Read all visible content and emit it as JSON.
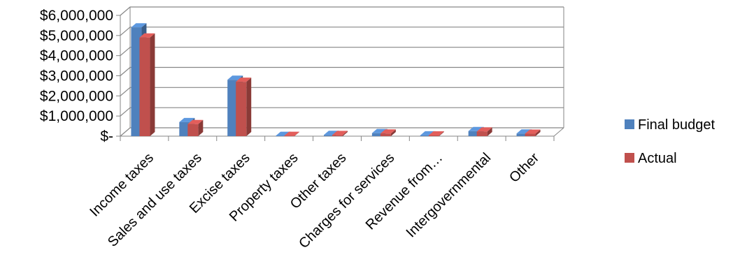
{
  "chart_data": {
    "type": "bar",
    "categories": [
      "Income taxes",
      "Sales and use taxes",
      "Excise taxes",
      "Property taxes",
      "Other taxes",
      "Charges for services",
      "Revenue from…",
      "Intergovernmental",
      "Other"
    ],
    "series": [
      {
        "name": "Final budget",
        "color": "#4F81BD",
        "values": [
          5400000,
          700000,
          2800000,
          15000,
          60000,
          150000,
          40000,
          250000,
          130000
        ]
      },
      {
        "name": "Actual",
        "color": "#C0504D",
        "values": [
          4900000,
          600000,
          2700000,
          12000,
          55000,
          130000,
          35000,
          230000,
          120000
        ]
      }
    ],
    "yticks": [
      "$-",
      "$1,000,000",
      "$2,000,000",
      "$3,000,000",
      "$4,000,000",
      "$5,000,000",
      "$6,000,000"
    ],
    "ylim": [
      0,
      6000000
    ],
    "grid": true,
    "legend_position": "right",
    "title": "",
    "xlabel": "",
    "ylabel": ""
  }
}
